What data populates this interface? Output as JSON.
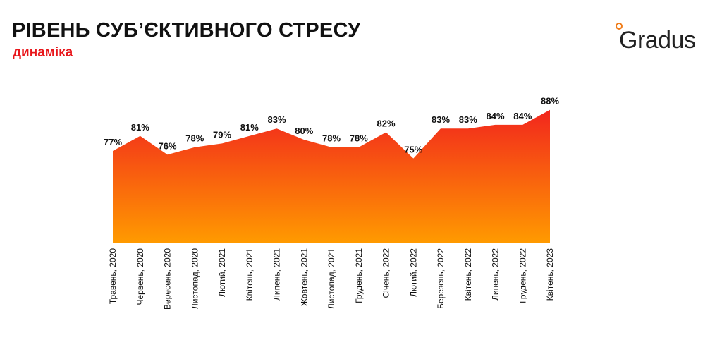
{
  "header": {
    "title": "РІВЕНЬ СУБ’ЄКТИВНОГО СТРЕСУ",
    "subtitle": "динаміка",
    "logo_text": "Gradus"
  },
  "colors": {
    "title": "#111111",
    "subtitle": "#e8161b",
    "area_top": "#f2261d",
    "area_bottom": "#ff9a00",
    "logo_dot": "#f07d1a"
  },
  "chart_data": {
    "type": "area",
    "categories": [
      "Травень, 2020",
      "Червень, 2020",
      "Вересень, 2020",
      "Листопад, 2020",
      "Лютий, 2021",
      "Квітень, 2021",
      "Липень, 2021",
      "Жовтень, 2021",
      "Листопад, 2021",
      "Грудень, 2021",
      "Січень, 2022",
      "Лютий, 2022",
      "Березень, 2022",
      "Квітень, 2022",
      "Липень, 2022",
      "Грудень, 2022",
      "Квітень, 2023"
    ],
    "values": [
      77,
      81,
      76,
      78,
      79,
      81,
      83,
      80,
      78,
      78,
      82,
      75,
      83,
      83,
      84,
      84,
      88
    ],
    "labels": [
      "77%",
      "81%",
      "76%",
      "78%",
      "79%",
      "81%",
      "83%",
      "80%",
      "78%",
      "78%",
      "82%",
      "75%",
      "83%",
      "83%",
      "84%",
      "84%",
      "88%"
    ],
    "unit": "%",
    "grid": false,
    "legend": "none"
  }
}
